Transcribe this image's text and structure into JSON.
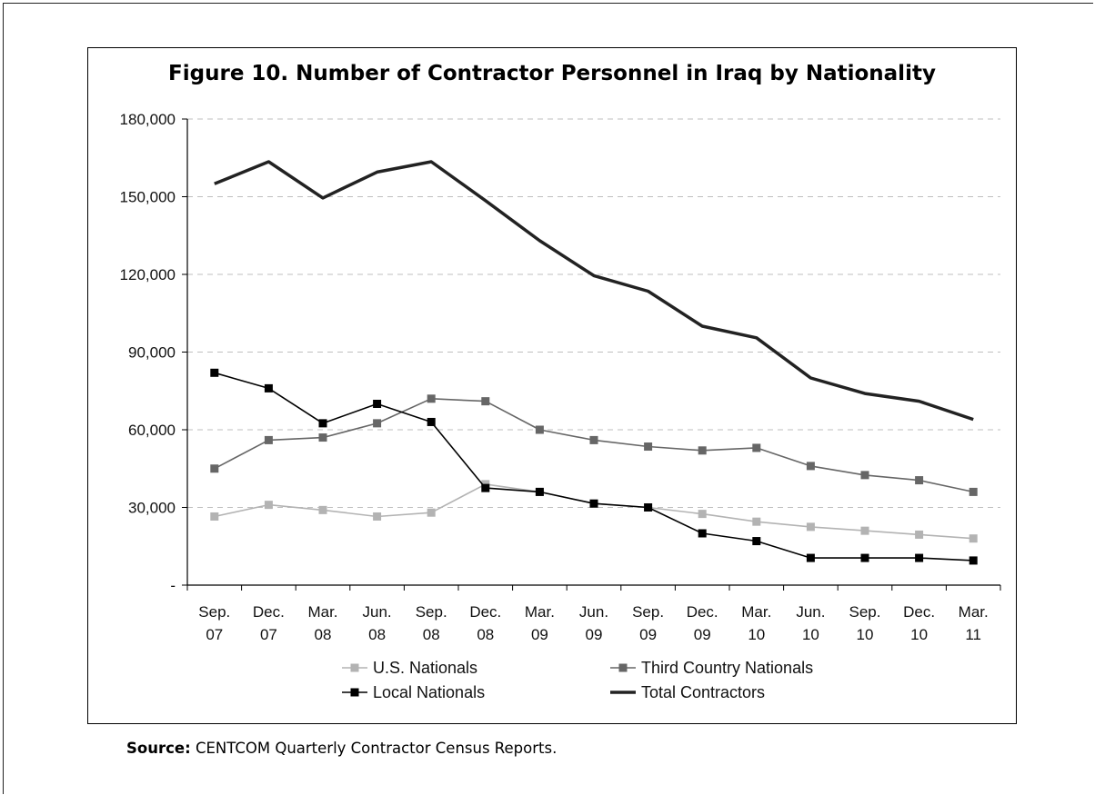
{
  "title": "Figure 10. Number of Contractor Personnel in Iraq by Nationality",
  "source": {
    "label": "Source:",
    "text": "CENTCOM Quarterly Contractor Census Reports."
  },
  "chart_data": {
    "type": "line",
    "title": "Figure 10. Number of Contractor Personnel in Iraq by Nationality",
    "categories": [
      [
        "Sep.",
        "07"
      ],
      [
        "Dec.",
        "07"
      ],
      [
        "Mar.",
        "08"
      ],
      [
        "Jun.",
        "08"
      ],
      [
        "Sep.",
        "08"
      ],
      [
        "Dec.",
        "08"
      ],
      [
        "Mar.",
        "09"
      ],
      [
        "Jun.",
        "09"
      ],
      [
        "Sep.",
        "09"
      ],
      [
        "Dec.",
        "09"
      ],
      [
        "Mar.",
        "10"
      ],
      [
        "Jun.",
        "10"
      ],
      [
        "Sep.",
        "10"
      ],
      [
        "Dec.",
        "10"
      ],
      [
        "Mar.",
        "11"
      ]
    ],
    "y_ticks": [
      0,
      30000,
      60000,
      90000,
      120000,
      150000,
      180000
    ],
    "y_tick_labels": [
      "-",
      "30,000",
      "60,000",
      "90,000",
      "120,000",
      "150,000",
      "180,000"
    ],
    "ylim": [
      0,
      180000
    ],
    "grid": "horizontal dashed",
    "legend_position": "bottom",
    "series": [
      {
        "name": "U.S. Nationals",
        "color": "#b3b3b3",
        "marker": "square",
        "values": [
          26500,
          31000,
          29000,
          26500,
          28000,
          39000,
          36000,
          31500,
          30000,
          27500,
          24500,
          22500,
          21000,
          19500,
          18000
        ]
      },
      {
        "name": "Third Country Nationals",
        "color": "#666666",
        "marker": "square",
        "values": [
          45000,
          56000,
          57000,
          62500,
          72000,
          71000,
          60000,
          56000,
          53500,
          52000,
          53000,
          46000,
          42500,
          40500,
          36000
        ]
      },
      {
        "name": "Local Nationals",
        "color": "#000000",
        "marker": "square",
        "values": [
          82000,
          76000,
          62500,
          70000,
          63000,
          37500,
          36000,
          31500,
          30000,
          20000,
          17000,
          10500,
          10500,
          10500,
          9500
        ]
      },
      {
        "name": "Total Contractors",
        "color": "#222222",
        "marker": "none",
        "values": [
          155000,
          163500,
          149500,
          159500,
          163500,
          148500,
          133000,
          119500,
          113500,
          100000,
          95500,
          80000,
          74000,
          71000,
          64000
        ]
      }
    ]
  }
}
